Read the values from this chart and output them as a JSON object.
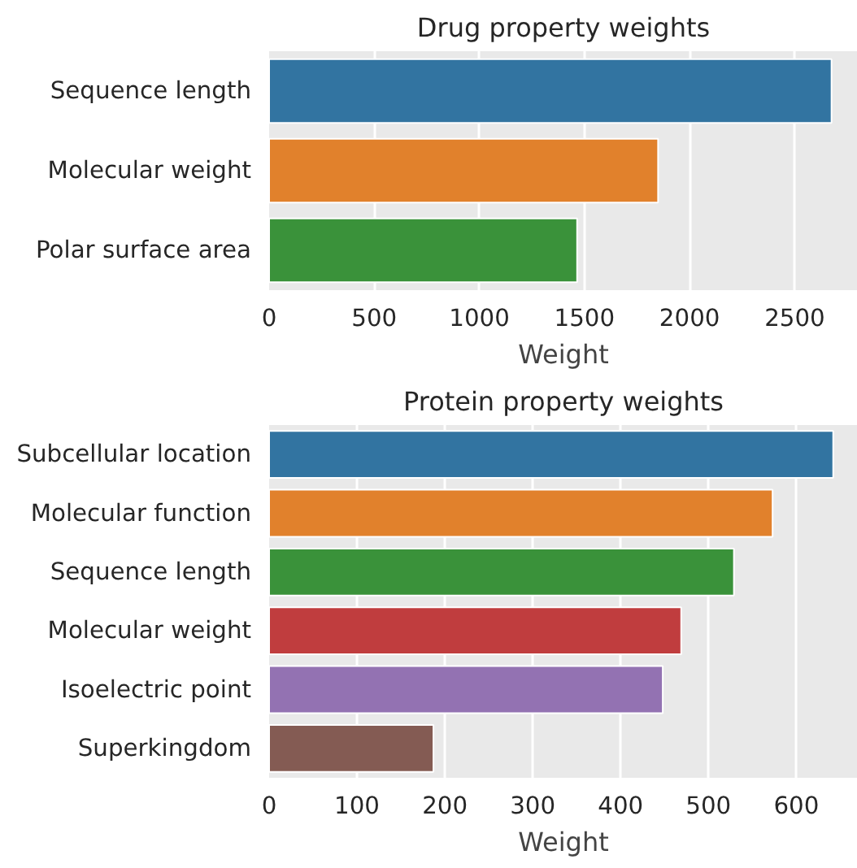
{
  "chart_data": [
    {
      "type": "bar",
      "orientation": "horizontal",
      "title": "Drug property weights",
      "xlabel": "Weight",
      "categories": [
        "Sequence length",
        "Molecular weight",
        "Polar surface area"
      ],
      "values": [
        2675,
        1850,
        1465
      ],
      "colors": [
        "#3274a1",
        "#e1812c",
        "#3a923a"
      ],
      "xlim": [
        0,
        2800
      ],
      "xticks": [
        0,
        500,
        1000,
        1500,
        2000,
        2500
      ],
      "grid": "x"
    },
    {
      "type": "bar",
      "orientation": "horizontal",
      "title": "Protein property weights",
      "xlabel": "Weight",
      "categories": [
        "Subcellular location",
        "Molecular function",
        "Sequence length",
        "Molecular weight",
        "Isoelectric point",
        "Superkingdom"
      ],
      "values": [
        642,
        573,
        529,
        469,
        448,
        187
      ],
      "colors": [
        "#3274a1",
        "#e1812c",
        "#3a923a",
        "#c03d3e",
        "#9372b2",
        "#845b53"
      ],
      "xlim": [
        0,
        670
      ],
      "xticks": [
        0,
        100,
        200,
        300,
        400,
        500,
        600
      ],
      "grid": "x"
    }
  ]
}
